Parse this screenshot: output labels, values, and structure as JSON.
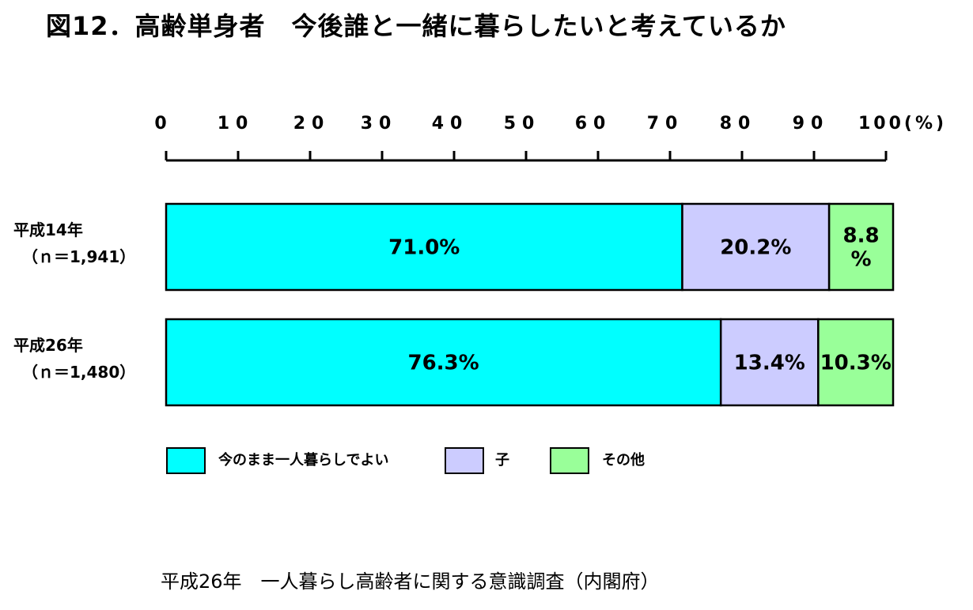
{
  "title": "図12．高齢単身者　今後誰と一緒に暮らしたいと考えているか",
  "source": "平成26年　一人暮らし高齢者に関する意識調査（内閣府）",
  "colors": {
    "today": "#00FFFF",
    "child": "#CCCCFF",
    "other": "#99FF99"
  },
  "chart_data": {
    "type": "bar",
    "orientation": "horizontal",
    "stacked": true,
    "xlim": [
      0,
      100
    ],
    "x_ticks": [
      "0",
      "10",
      "20",
      "30",
      "40",
      "50",
      "60",
      "70",
      "80",
      "90",
      "100(%)"
    ],
    "categories": [
      [
        "平成14年",
        "（ｎ＝1,941）"
      ],
      [
        "平成26年",
        "（ｎ＝1,480）"
      ]
    ],
    "series": [
      {
        "name": "今のまま一人暮らしでよい",
        "values": [
          71.0,
          76.3
        ],
        "labels": [
          [
            "71.0%"
          ],
          [
            "76.3%"
          ]
        ]
      },
      {
        "name": "子",
        "values": [
          20.2,
          13.4
        ],
        "labels": [
          [
            "20.2%"
          ],
          [
            "13.4%"
          ]
        ]
      },
      {
        "name": "その他",
        "values": [
          8.8,
          10.3
        ],
        "labels": [
          [
            "8.8",
            "%"
          ],
          [
            "10.3%"
          ]
        ]
      }
    ],
    "legend_position": "bottom",
    "grid": false
  }
}
